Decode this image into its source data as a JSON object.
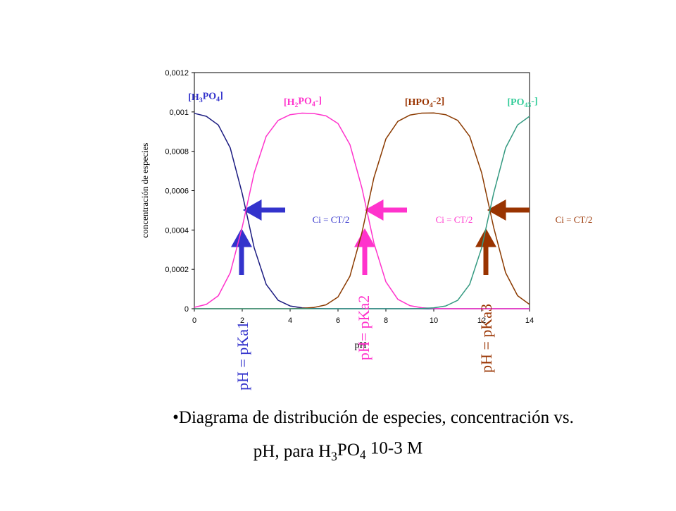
{
  "chart_data": {
    "type": "line",
    "y_label": "concentración de especies",
    "x_label": "pH",
    "xlim": [
      0,
      14
    ],
    "xticks": [
      0,
      2,
      4,
      6,
      8,
      10,
      12,
      14
    ],
    "ylim": [
      0,
      0.0012
    ],
    "yticks": [
      0,
      {
        "value": 0.0002,
        "label": "0,0002"
      },
      {
        "value": 0.0004,
        "label": "0,0004"
      },
      {
        "value": 0.0006,
        "label": "0,0006"
      },
      {
        "value": 0.0008,
        "label": "0,0008"
      },
      {
        "value": 0.001,
        "label": "0,001"
      },
      {
        "value": 0.0012,
        "label": "0,0012"
      }
    ],
    "x": [
      0,
      0.5,
      1,
      1.5,
      2,
      2.5,
      3,
      3.5,
      4,
      4.5,
      5,
      5.5,
      6,
      6.5,
      7,
      7.5,
      8,
      8.5,
      9,
      9.5,
      10,
      10.5,
      11,
      11.5,
      12,
      12.5,
      13,
      13.5,
      14
    ],
    "series": [
      {
        "name": "[H3PO4]",
        "color": "#1a1a80",
        "label_color": "#3333cc",
        "values": [
          0.000993,
          0.000978,
          0.000934,
          0.000817,
          0.000585,
          0.000309,
          0.000124,
          4.27e-05,
          1.39e-05,
          4.4e-06,
          1.4e-06,
          0,
          0,
          0,
          0,
          0,
          0,
          0,
          0,
          0,
          0,
          0,
          0,
          0,
          0,
          0,
          0,
          0,
          0
        ]
      },
      {
        "name": "[H2PO4-]",
        "color": "#ff33cc",
        "label_color": "#ff33cc",
        "values": [
          7e-06,
          2.19e-05,
          6.6e-05,
          0.000183,
          0.000415,
          0.000691,
          0.000876,
          0.000957,
          0.000986,
          0.000994,
          0.000992,
          0.00098,
          0.000941,
          0.000834,
          0.000613,
          0.000334,
          0.000137,
          4.77e-05,
          1.56e-05,
          5e-06,
          1.6e-06,
          0,
          0,
          0,
          0,
          0,
          0,
          0,
          0
        ]
      },
      {
        "name": "[HPO4-2]",
        "color": "#8b3a00",
        "label_color": "#993300",
        "values": [
          0,
          0,
          0,
          0,
          0,
          0,
          0,
          0,
          0,
          2e-06,
          6.3e-06,
          1.96e-05,
          5.93e-05,
          0.000166,
          0.000387,
          0.000666,
          0.000863,
          0.000952,
          0.000984,
          0.000994,
          0.000995,
          0.000986,
          0.000957,
          0.000876,
          0.000691,
          0.000414,
          0.000183,
          6.61e-05,
          2.19e-05
        ]
      },
      {
        "name": "[PO43-]",
        "color": "#339980",
        "label_color": "#33cc99",
        "values": [
          0,
          0,
          0,
          0,
          0,
          0,
          0,
          0,
          0,
          0,
          0,
          0,
          0,
          0,
          0,
          0,
          0,
          0,
          0,
          1.4e-06,
          4.5e-06,
          1.39e-05,
          4.28e-05,
          0.000124,
          0.000309,
          0.000586,
          0.000817,
          0.000934,
          0.000978
        ]
      }
    ],
    "annotations": [
      {
        "text": "Ci = CT/2",
        "color": "#3333cc"
      },
      {
        "text": "Ci = CT/2",
        "color": "#ff33cc"
      },
      {
        "text": "Ci = CT/2",
        "color": "#993300"
      },
      {
        "text": "pH = pKa1",
        "color": "#3333cc"
      },
      {
        "text": "pH= pKa2",
        "color": "#ff33cc"
      },
      {
        "text": "pH = pKa3",
        "color": "#993300"
      }
    ],
    "caption": [
      "•Diagrama de distribución de especies, concentración vs.",
      "pH, para H3PO4 10-3 M"
    ]
  }
}
